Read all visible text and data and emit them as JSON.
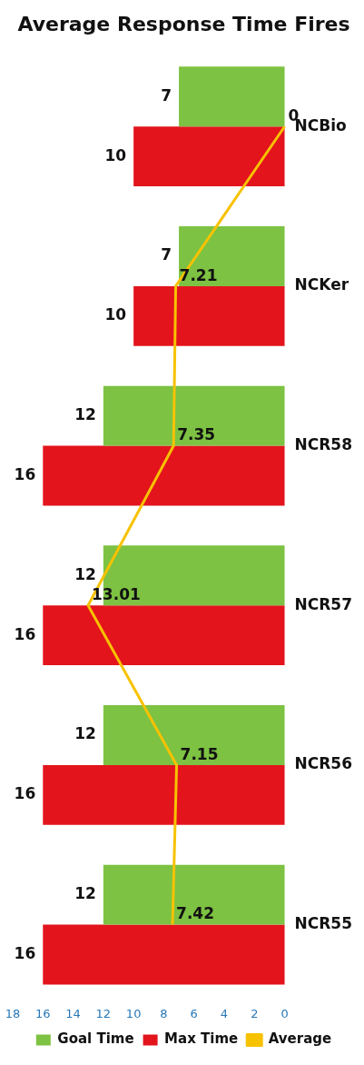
{
  "chart_data": {
    "type": "bar",
    "title": "Average Response Time Fires",
    "orientation": "horizontal",
    "categories": [
      "NCBio",
      "NCKer",
      "NCR58",
      "NCR57",
      "NCR56",
      "NCR55"
    ],
    "series": [
      {
        "name": "Goal Time",
        "color": "#7dc242",
        "values": [
          7,
          7,
          12,
          12,
          12,
          12
        ]
      },
      {
        "name": "Max Time",
        "color": "#e3141c",
        "values": [
          10,
          10,
          16,
          16,
          16,
          16
        ]
      },
      {
        "name": "Average",
        "type": "line",
        "color": "#f7c200",
        "values": [
          0,
          7.21,
          7.35,
          13.01,
          7.15,
          7.42
        ]
      }
    ],
    "xlim": [
      18,
      0
    ],
    "xticks": [
      0,
      2,
      4,
      6,
      8,
      10,
      12,
      14,
      16,
      18
    ],
    "data_labels": true,
    "grid": false,
    "legend": "bottom",
    "marker": "none"
  }
}
